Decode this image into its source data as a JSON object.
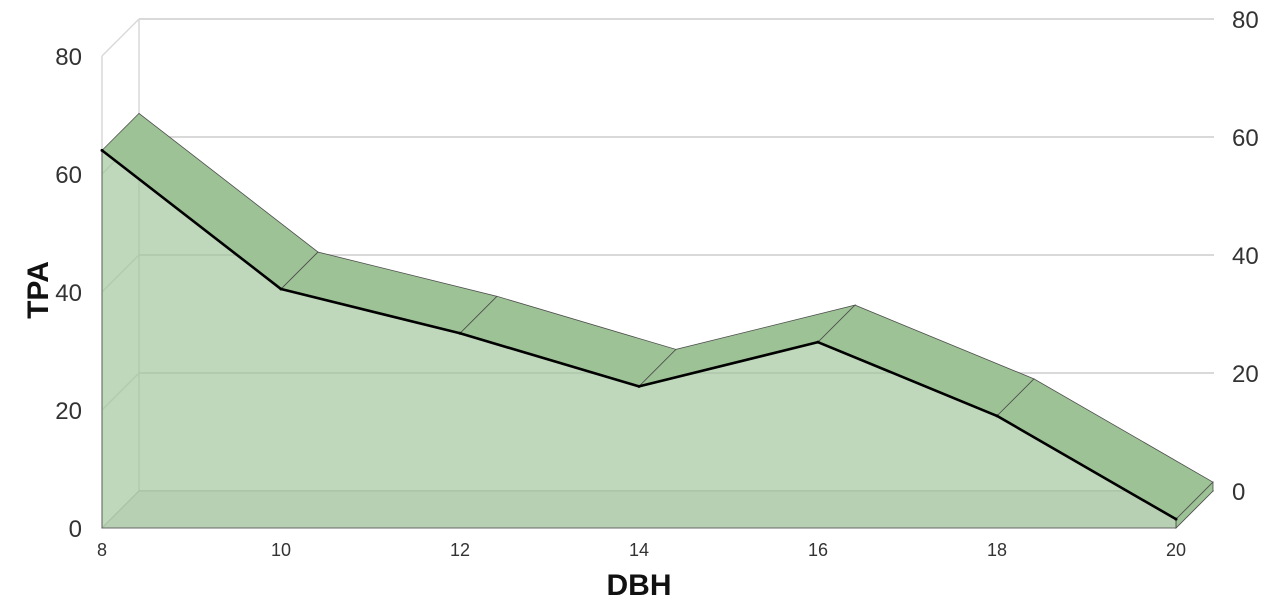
{
  "chart_data": {
    "type": "area",
    "style": "3d",
    "title": "",
    "xlabel": "DBH",
    "ylabel": "TPA",
    "x": [
      8,
      10,
      12,
      14,
      16,
      18,
      20
    ],
    "series": [
      {
        "values": [
          64,
          40.5,
          33,
          24,
          31.5,
          19,
          1.5
        ]
      }
    ],
    "xlim": [
      8,
      20
    ],
    "ylim": [
      0,
      80
    ],
    "yticks": [
      0,
      20,
      40,
      60,
      80
    ],
    "xticks": [
      8,
      10,
      12,
      14,
      16,
      18,
      20
    ],
    "grid": true,
    "legend": "none",
    "colors": {
      "area": "#9dc295",
      "line": "#000000",
      "grid": "#d9d9d9"
    }
  }
}
